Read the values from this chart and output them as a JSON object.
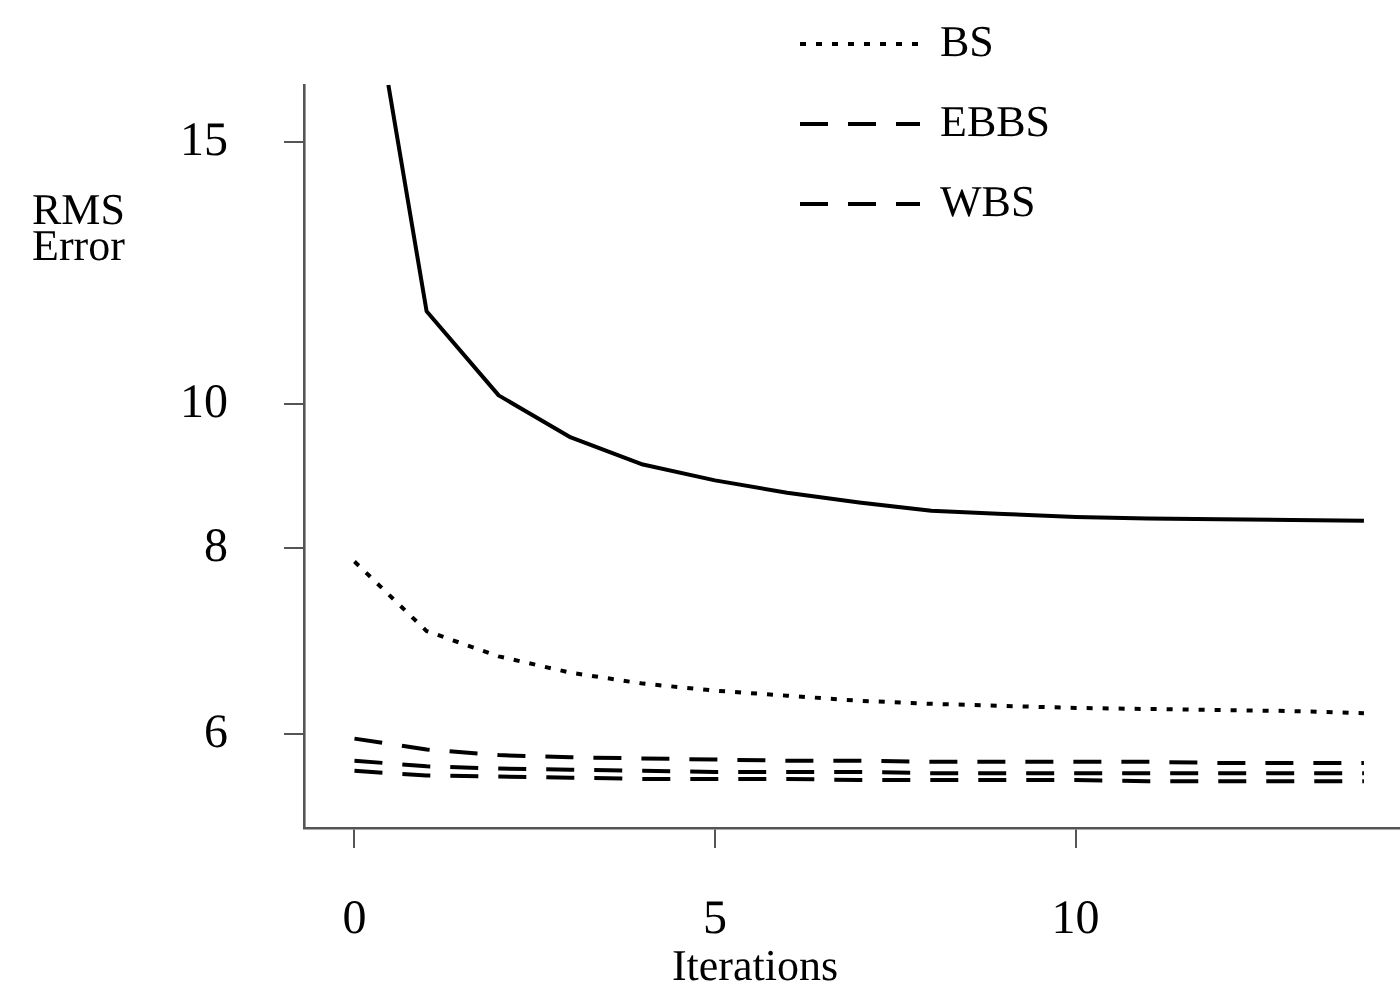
{
  "chart_data": {
    "type": "line",
    "xlabel": "Iterations",
    "ylabel": "RMS Error",
    "log": "y",
    "xlim": [
      -0.7,
      14.5
    ],
    "xticks": [
      0,
      5,
      10
    ],
    "ylim": [
      5.19,
      16.4
    ],
    "yticks": [
      6,
      8,
      10,
      15
    ],
    "grid": false,
    "legend": "top",
    "marker": "none",
    "x": [
      0,
      1,
      2,
      3,
      4,
      5,
      6,
      7,
      8,
      9,
      10,
      11,
      12,
      13,
      14
    ],
    "series": [
      {
        "color": "#000000",
        "line_style": "solid",
        "x": [
          0.47,
          1,
          2,
          3,
          4,
          5,
          6,
          7,
          8,
          9,
          10,
          11,
          12,
          13,
          14
        ],
        "values": [
          16.4,
          11.55,
          10.14,
          9.5,
          9.11,
          8.89,
          8.72,
          8.59,
          8.48,
          8.44,
          8.4,
          8.38,
          8.37,
          8.36,
          8.35
        ]
      },
      {
        "name": "BS",
        "color": "#000000",
        "line_style": "dotted",
        "values": [
          7.84,
          7.04,
          6.77,
          6.6,
          6.49,
          6.42,
          6.37,
          6.32,
          6.29,
          6.27,
          6.25,
          6.24,
          6.23,
          6.22,
          6.2
        ]
      },
      {
        "name": "EBBS",
        "color": "#000000",
        "line_style": "dashed",
        "values": [
          5.96,
          5.86,
          5.81,
          5.79,
          5.78,
          5.77,
          5.76,
          5.76,
          5.75,
          5.75,
          5.75,
          5.75,
          5.74,
          5.74,
          5.74
        ]
      },
      {
        "color": "#000000",
        "line_style": "dashed",
        "values": [
          5.76,
          5.71,
          5.69,
          5.68,
          5.67,
          5.66,
          5.66,
          5.66,
          5.65,
          5.65,
          5.65,
          5.65,
          5.65,
          5.65,
          5.65
        ]
      },
      {
        "name": "WBS",
        "color": "#000000",
        "line_style": "dashed",
        "values": [
          5.67,
          5.63,
          5.62,
          5.61,
          5.6,
          5.6,
          5.6,
          5.59,
          5.59,
          5.59,
          5.59,
          5.58,
          5.58,
          5.58,
          5.58
        ]
      }
    ]
  }
}
